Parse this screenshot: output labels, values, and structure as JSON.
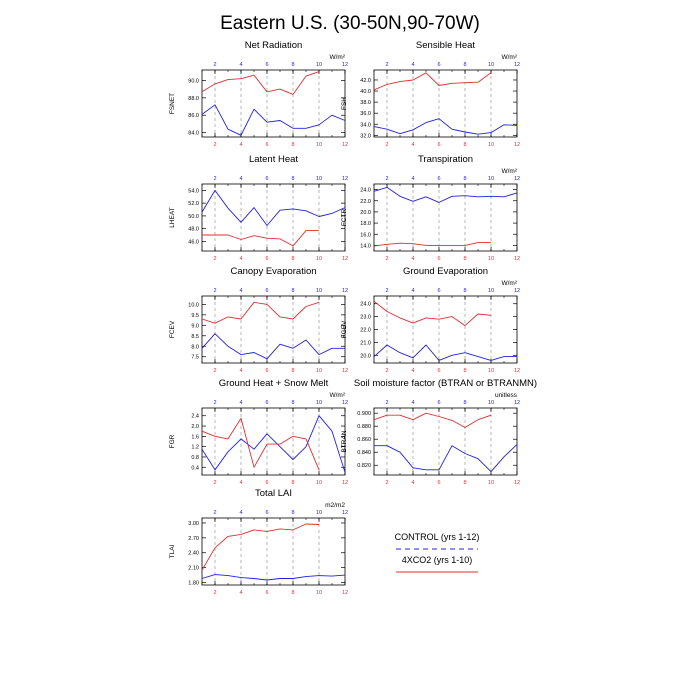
{
  "figure": {
    "title": "Eastern U.S. (30-50N,90-70W)",
    "colors": {
      "control": "#2222dd",
      "xco2": "#e03030",
      "top_tick": "#2222dd",
      "bottom_tick": "#e03030",
      "grid": "#999999"
    }
  },
  "legend": {
    "items": [
      {
        "label": "CONTROL (yrs 1-12)",
        "color": "#2222dd",
        "style": "dashed"
      },
      {
        "label": "4XCO2 (yrs 1-10)",
        "color": "#e03030",
        "style": "solid"
      }
    ]
  },
  "chart_data": [
    {
      "type": "line",
      "title": "Net Radiation",
      "ylabel": "FSNET",
      "units": "W/m^2",
      "xlim": [
        1,
        12
      ],
      "ylim": [
        83.5,
        91.2
      ],
      "yticks": [
        84.0,
        86.0,
        88.0,
        90.0
      ],
      "ytick_labels": [
        "84.0",
        "86.0",
        "88.0",
        "90.0"
      ],
      "top_ticks": [
        2,
        4,
        6,
        8,
        10,
        12
      ],
      "bottom_ticks": [
        2,
        4,
        6,
        8,
        10,
        12
      ],
      "series": [
        {
          "name": "CONTROL (yrs 1-12)",
          "x": [
            1,
            2,
            3,
            4,
            5,
            6,
            7,
            8,
            9,
            10,
            11,
            12
          ],
          "values": [
            86.1,
            87.2,
            84.4,
            83.7,
            86.7,
            85.2,
            85.4,
            84.5,
            84.5,
            84.9,
            86.0,
            85.4
          ]
        },
        {
          "name": "4XCO2 (yrs 1-10)",
          "x": [
            1,
            2,
            3,
            4,
            5,
            6,
            7,
            8,
            9,
            10
          ],
          "values": [
            88.7,
            89.6,
            90.1,
            90.2,
            90.6,
            88.7,
            89.0,
            88.4,
            90.5,
            91.0
          ]
        }
      ]
    },
    {
      "type": "line",
      "title": "Sensible Heat",
      "ylabel": "FSH",
      "units": "W/m^2",
      "xlim": [
        1,
        12
      ],
      "ylim": [
        31.7,
        43.8
      ],
      "yticks": [
        32.0,
        34.0,
        36.0,
        38.0,
        40.0,
        42.0
      ],
      "ytick_labels": [
        "32.0",
        "34.0",
        "36.0",
        "38.0",
        "40.0",
        "42.0"
      ],
      "top_ticks": [
        2,
        4,
        6,
        8,
        10,
        12
      ],
      "bottom_ticks": [
        2,
        4,
        6,
        8,
        10,
        12
      ],
      "series": [
        {
          "name": "CONTROL (yrs 1-12)",
          "x": [
            1,
            2,
            3,
            4,
            5,
            6,
            7,
            8,
            9,
            10,
            11,
            12
          ],
          "values": [
            33.6,
            33.1,
            32.3,
            33.0,
            34.3,
            35.0,
            33.1,
            32.6,
            32.2,
            32.5,
            33.9,
            33.8
          ]
        },
        {
          "name": "4XCO2 (yrs 1-10)",
          "x": [
            1,
            2,
            3,
            4,
            5,
            6,
            7,
            8,
            9,
            10
          ],
          "values": [
            40.2,
            41.2,
            41.7,
            42.0,
            43.3,
            41.0,
            41.4,
            41.5,
            41.6,
            43.3
          ]
        }
      ]
    },
    {
      "type": "line",
      "title": "Latent Heat",
      "ylabel": "LHEAT",
      "units": "",
      "xlim": [
        1,
        12
      ],
      "ylim": [
        44.5,
        55.0
      ],
      "yticks": [
        46.0,
        48.0,
        50.0,
        52.0,
        54.0
      ],
      "ytick_labels": [
        "46.0",
        "48.0",
        "50.0",
        "52.0",
        "54.0"
      ],
      "top_ticks": [
        2,
        4,
        6,
        8,
        10,
        12
      ],
      "bottom_ticks": [
        2,
        4,
        6,
        8,
        10,
        12
      ],
      "series": [
        {
          "name": "CONTROL (yrs 1-12)",
          "x": [
            1,
            2,
            3,
            4,
            5,
            6,
            7,
            8,
            9,
            10,
            11,
            12
          ],
          "values": [
            50.6,
            54.0,
            51.2,
            49.0,
            51.3,
            48.5,
            50.9,
            51.1,
            50.8,
            49.9,
            50.4,
            51.3
          ]
        },
        {
          "name": "4XCO2 (yrs 1-10)",
          "x": [
            1,
            2,
            3,
            4,
            5,
            6,
            7,
            8,
            9,
            10
          ],
          "values": [
            47.0,
            47.0,
            47.0,
            46.3,
            46.9,
            46.5,
            46.4,
            45.3,
            47.7,
            47.7
          ]
        }
      ]
    },
    {
      "type": "line",
      "title": "Transpiration",
      "ylabel": "FCTR",
      "units": "W/m^2",
      "xlim": [
        1,
        12
      ],
      "ylim": [
        13.0,
        25.0
      ],
      "yticks": [
        14.0,
        16.0,
        18.0,
        20.0,
        22.0,
        24.0
      ],
      "ytick_labels": [
        "14.0",
        "16.0",
        "18.0",
        "20.0",
        "22.0",
        "24.0"
      ],
      "top_ticks": [
        2,
        4,
        6,
        8,
        10,
        12
      ],
      "bottom_ticks": [
        2,
        4,
        6,
        8,
        10,
        12
      ],
      "series": [
        {
          "name": "CONTROL (yrs 1-12)",
          "x": [
            1,
            2,
            3,
            4,
            5,
            6,
            7,
            8,
            9,
            10,
            11,
            12
          ],
          "values": [
            23.7,
            24.4,
            22.8,
            21.9,
            22.7,
            21.7,
            22.8,
            22.9,
            22.7,
            22.8,
            22.7,
            23.4
          ]
        },
        {
          "name": "4XCO2 (yrs 1-10)",
          "x": [
            1,
            2,
            3,
            4,
            5,
            6,
            7,
            8,
            9,
            10
          ],
          "values": [
            13.9,
            14.2,
            14.4,
            14.3,
            14.0,
            14.0,
            14.0,
            14.0,
            14.5,
            14.5
          ]
        }
      ]
    },
    {
      "type": "line",
      "title": "Canopy Evaporation",
      "ylabel": "FCEV",
      "units": "",
      "xlim": [
        1,
        12
      ],
      "ylim": [
        7.2,
        10.4
      ],
      "yticks": [
        7.5,
        8.0,
        8.5,
        9.0,
        9.5,
        10.0
      ],
      "ytick_labels": [
        "7.5",
        "8.0",
        "8.5",
        "9.0",
        "9.5",
        "10.0"
      ],
      "top_ticks": [
        2,
        4,
        6,
        8,
        10,
        12
      ],
      "bottom_ticks": [
        2,
        4,
        6,
        8,
        10,
        12
      ],
      "series": [
        {
          "name": "CONTROL (yrs 1-12)",
          "x": [
            1,
            2,
            3,
            4,
            5,
            6,
            7,
            8,
            9,
            10,
            11,
            12
          ],
          "values": [
            7.9,
            8.6,
            8.0,
            7.6,
            7.7,
            7.4,
            8.1,
            7.9,
            8.3,
            7.6,
            7.9,
            7.9
          ]
        },
        {
          "name": "4XCO2 (yrs 1-10)",
          "x": [
            1,
            2,
            3,
            4,
            5,
            6,
            7,
            8,
            9,
            10
          ],
          "values": [
            9.3,
            9.1,
            9.4,
            9.3,
            10.1,
            10.0,
            9.4,
            9.3,
            9.9,
            10.1
          ]
        }
      ]
    },
    {
      "type": "line",
      "title": "Ground Evaporation",
      "ylabel": "FGEV",
      "units": "W/m^2",
      "xlim": [
        1,
        12
      ],
      "ylim": [
        19.4,
        24.6
      ],
      "yticks": [
        20.0,
        21.0,
        22.0,
        23.0,
        24.0
      ],
      "ytick_labels": [
        "20.0",
        "21.0",
        "22.0",
        "23.0",
        "24.0"
      ],
      "top_ticks": [
        2,
        4,
        6,
        8,
        10,
        12
      ],
      "bottom_ticks": [
        2,
        4,
        6,
        8,
        10,
        12
      ],
      "series": [
        {
          "name": "CONTROL (yrs 1-12)",
          "x": [
            1,
            2,
            3,
            4,
            5,
            6,
            7,
            8,
            9,
            10,
            11,
            12
          ],
          "values": [
            19.9,
            20.8,
            20.2,
            19.8,
            20.8,
            19.6,
            20.0,
            20.2,
            19.9,
            19.6,
            19.9,
            19.9
          ]
        },
        {
          "name": "4XCO2 (yrs 1-10)",
          "x": [
            1,
            2,
            3,
            4,
            5,
            6,
            7,
            8,
            9,
            10
          ],
          "values": [
            24.2,
            23.4,
            22.9,
            22.5,
            22.9,
            22.8,
            23.0,
            22.3,
            23.2,
            23.1
          ]
        }
      ]
    },
    {
      "type": "line",
      "title": "Ground Heat + Snow Melt",
      "ylabel": "FGR",
      "units": "W/m^2",
      "xlim": [
        1,
        12
      ],
      "ylim": [
        0.1,
        2.7
      ],
      "yticks": [
        0.4,
        0.8,
        1.2,
        1.6,
        2.0,
        2.4
      ],
      "ytick_labels": [
        "0.4",
        "0.8",
        "1.2",
        "1.6",
        "2.0",
        "2.4"
      ],
      "top_ticks": [
        2,
        4,
        6,
        8,
        10,
        12
      ],
      "bottom_ticks": [
        2,
        4,
        6,
        8,
        10,
        12
      ],
      "series": [
        {
          "name": "CONTROL (yrs 1-12)",
          "x": [
            1,
            2,
            3,
            4,
            5,
            6,
            7,
            8,
            9,
            10,
            11,
            12
          ],
          "values": [
            1.1,
            0.3,
            1.0,
            1.5,
            1.1,
            1.7,
            1.2,
            0.7,
            1.2,
            2.4,
            1.8,
            0.2
          ]
        },
        {
          "name": "4XCO2 (yrs 1-10)",
          "x": [
            1,
            2,
            3,
            4,
            5,
            6,
            7,
            8,
            9,
            10
          ],
          "values": [
            1.8,
            1.6,
            1.5,
            2.3,
            0.4,
            1.3,
            1.3,
            1.6,
            1.5,
            0.3
          ]
        }
      ]
    },
    {
      "type": "line",
      "title": "Soil moisture factor (BTRAN or BTRANMN)",
      "ylabel": "BTRAN",
      "units": "unitless",
      "xlim": [
        1,
        12
      ],
      "ylim": [
        0.805,
        0.908
      ],
      "yticks": [
        0.82,
        0.84,
        0.86,
        0.88,
        0.9
      ],
      "ytick_labels": [
        "0.820",
        "0.840",
        "0.860",
        "0.880",
        "0.900"
      ],
      "top_ticks": [
        2,
        4,
        6,
        8,
        10,
        12
      ],
      "bottom_ticks": [
        2,
        4,
        6,
        8,
        10,
        12
      ],
      "series": [
        {
          "name": "CONTROL (yrs 1-12)",
          "x": [
            1,
            2,
            3,
            4,
            5,
            6,
            7,
            8,
            9,
            10,
            11,
            12
          ],
          "values": [
            0.85,
            0.85,
            0.84,
            0.816,
            0.813,
            0.813,
            0.85,
            0.838,
            0.83,
            0.81,
            0.833,
            0.852
          ]
        },
        {
          "name": "4XCO2 (yrs 1-10)",
          "x": [
            1,
            2,
            3,
            4,
            5,
            6,
            7,
            8,
            9,
            10
          ],
          "values": [
            0.89,
            0.897,
            0.897,
            0.89,
            0.9,
            0.895,
            0.889,
            0.878,
            0.89,
            0.897
          ]
        }
      ]
    },
    {
      "type": "line",
      "title": "Total LAI",
      "ylabel": "TLAI",
      "units": "m2/m2",
      "xlim": [
        1,
        12
      ],
      "ylim": [
        1.75,
        3.1
      ],
      "yticks": [
        1.8,
        2.1,
        2.4,
        2.7,
        3.0
      ],
      "ytick_labels": [
        "1.80",
        "2.10",
        "2.40",
        "2.70",
        "3.00"
      ],
      "top_ticks": [
        2,
        4,
        6,
        8,
        10,
        12
      ],
      "bottom_ticks": [
        2,
        4,
        6,
        8,
        10,
        12
      ],
      "series": [
        {
          "name": "CONTROL (yrs 1-12)",
          "x": [
            1,
            2,
            3,
            4,
            5,
            6,
            7,
            8,
            9,
            10,
            11,
            12
          ],
          "values": [
            1.88,
            1.96,
            1.94,
            1.9,
            1.88,
            1.85,
            1.88,
            1.88,
            1.92,
            1.94,
            1.93,
            1.95
          ]
        },
        {
          "name": "4XCO2 (yrs 1-10)",
          "x": [
            1,
            2,
            3,
            4,
            5,
            6,
            7,
            8,
            9,
            10
          ],
          "values": [
            2.05,
            2.5,
            2.73,
            2.77,
            2.86,
            2.83,
            2.88,
            2.86,
            2.98,
            2.97
          ]
        }
      ]
    }
  ]
}
